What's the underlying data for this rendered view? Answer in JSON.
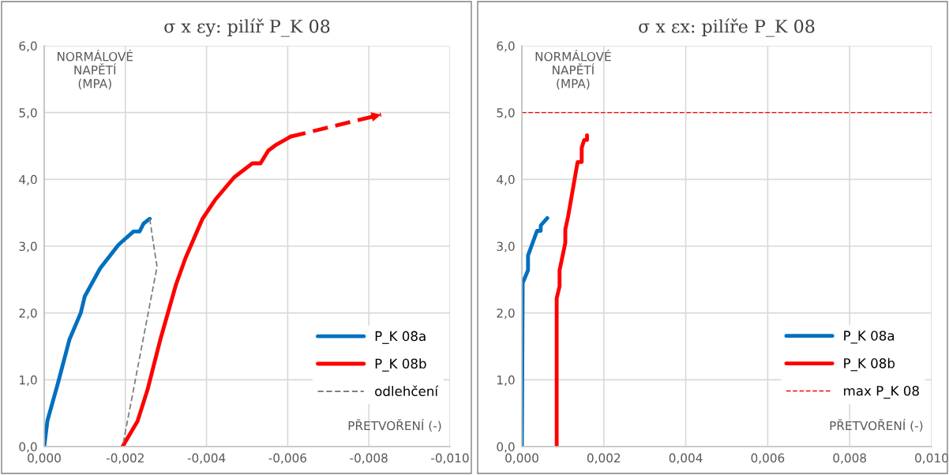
{
  "chart_data": [
    {
      "type": "line",
      "title": "σ x εy: pilíř P_K 08",
      "ylabel": "NORMÁLOVÉ\nNAPĚTÍ\n(MPA)",
      "xlabel": "PŘETVOŘENÍ (-)",
      "xlim": [
        0,
        -0.01
      ],
      "ylim": [
        0,
        6
      ],
      "xticks": [
        {
          "value": 0,
          "label": "0,000"
        },
        {
          "value": -0.002,
          "label": "-0,002"
        },
        {
          "value": -0.004,
          "label": "-0,004"
        },
        {
          "value": -0.006,
          "label": "-0,006"
        },
        {
          "value": -0.008,
          "label": "-0,008"
        },
        {
          "value": -0.01,
          "label": "-0,010"
        }
      ],
      "yticks": [
        {
          "value": 0,
          "label": "0,0"
        },
        {
          "value": 1,
          "label": "1,0"
        },
        {
          "value": 2,
          "label": "2,0"
        },
        {
          "value": 3,
          "label": "3,0"
        },
        {
          "value": 4,
          "label": "4,0"
        },
        {
          "value": 5,
          "label": "5,0"
        },
        {
          "value": 6,
          "label": "6,0"
        }
      ],
      "grid": true,
      "legend": "bottom right",
      "series": [
        {
          "name": "P_K 08a",
          "color": "#0070c0",
          "line_style": "solid",
          "x": [
            0,
            -8e-05,
            -0.00033,
            -0.00062,
            -0.0009,
            -0.001,
            -0.00138,
            -0.00183,
            -0.0022,
            -0.00235,
            -0.00245,
            -0.0026
          ],
          "values": [
            0,
            0.39,
            0.93,
            1.6,
            2.0,
            2.25,
            2.67,
            3.02,
            3.22,
            3.22,
            3.34,
            3.41
          ]
        },
        {
          "name": "P_K 08b",
          "color": "#ff0000",
          "line_style": "solid",
          "x": [
            -0.00193,
            -0.0023,
            -0.00255,
            -0.00286,
            -0.00325,
            -0.00348,
            -0.0039,
            -0.00422,
            -0.00468,
            -0.00513,
            -0.00533,
            -0.00552,
            -0.00572,
            -0.0059,
            -0.00607
          ],
          "values": [
            0,
            0.38,
            0.86,
            1.6,
            2.43,
            2.82,
            3.41,
            3.7,
            4.03,
            4.24,
            4.24,
            4.43,
            4.52,
            4.58,
            4.64
          ]
        },
        {
          "color": "#ff0000",
          "line_style": "dashed",
          "x": [
            -0.00607,
            -0.0083
          ],
          "values": [
            4.64,
            4.97
          ]
        },
        {
          "name": "odlehčení",
          "color": "#808080",
          "line_style": "dashed",
          "x": [
            -0.0026,
            -0.00278,
            -0.00193
          ],
          "values": [
            3.41,
            2.69,
            0
          ]
        }
      ]
    },
    {
      "type": "line",
      "title": "σ x εx: pilíře P_K 08",
      "ylabel": "NORMÁLOVÉ\nNAPĚTÍ\n(MPA)",
      "xlabel": "PŘETVOŘENÍ (-)",
      "xlim": [
        0,
        0.01
      ],
      "ylim": [
        0,
        6
      ],
      "xticks": [
        {
          "value": 0,
          "label": "0,000"
        },
        {
          "value": 0.002,
          "label": "0,002"
        },
        {
          "value": 0.004,
          "label": "0,004"
        },
        {
          "value": 0.006,
          "label": "0,006"
        },
        {
          "value": 0.008,
          "label": "0,008"
        },
        {
          "value": 0.01,
          "label": "0,010"
        }
      ],
      "yticks": [
        {
          "value": 0,
          "label": "0,0"
        },
        {
          "value": 1,
          "label": "1,0"
        },
        {
          "value": 2,
          "label": "2,0"
        },
        {
          "value": 3,
          "label": "3,0"
        },
        {
          "value": 4,
          "label": "4,0"
        },
        {
          "value": 5,
          "label": "5,0"
        },
        {
          "value": 6,
          "label": "6,0"
        }
      ],
      "grid": true,
      "legend": "bottom right",
      "series": [
        {
          "name": "P_K 08a",
          "color": "#0070c0",
          "line_style": "solid",
          "x": [
            0,
            2e-05,
            0.00015,
            0.00015,
            0.00037,
            0.00046,
            0.00046,
            0.00062
          ],
          "values": [
            0,
            2.45,
            2.64,
            2.86,
            3.23,
            3.23,
            3.31,
            3.42
          ]
        },
        {
          "name": "P_K 08b",
          "color": "#ff0000",
          "line_style": "solid",
          "x": [
            0.00085,
            0.00085,
            0.00092,
            0.00092,
            0.00106,
            0.00106,
            0.00113,
            0.00136,
            0.00146,
            0.00146,
            0.00152,
            0.00159,
            0.00159
          ],
          "values": [
            0,
            2.22,
            2.4,
            2.64,
            3.05,
            3.25,
            3.45,
            4.26,
            4.26,
            4.47,
            4.59,
            4.59,
            4.66
          ]
        }
      ],
      "ref_lines": [
        {
          "axis": "y",
          "value": 5,
          "label": "max P_K 08",
          "color": "#ff0000",
          "line_style": "dashed"
        }
      ]
    }
  ]
}
